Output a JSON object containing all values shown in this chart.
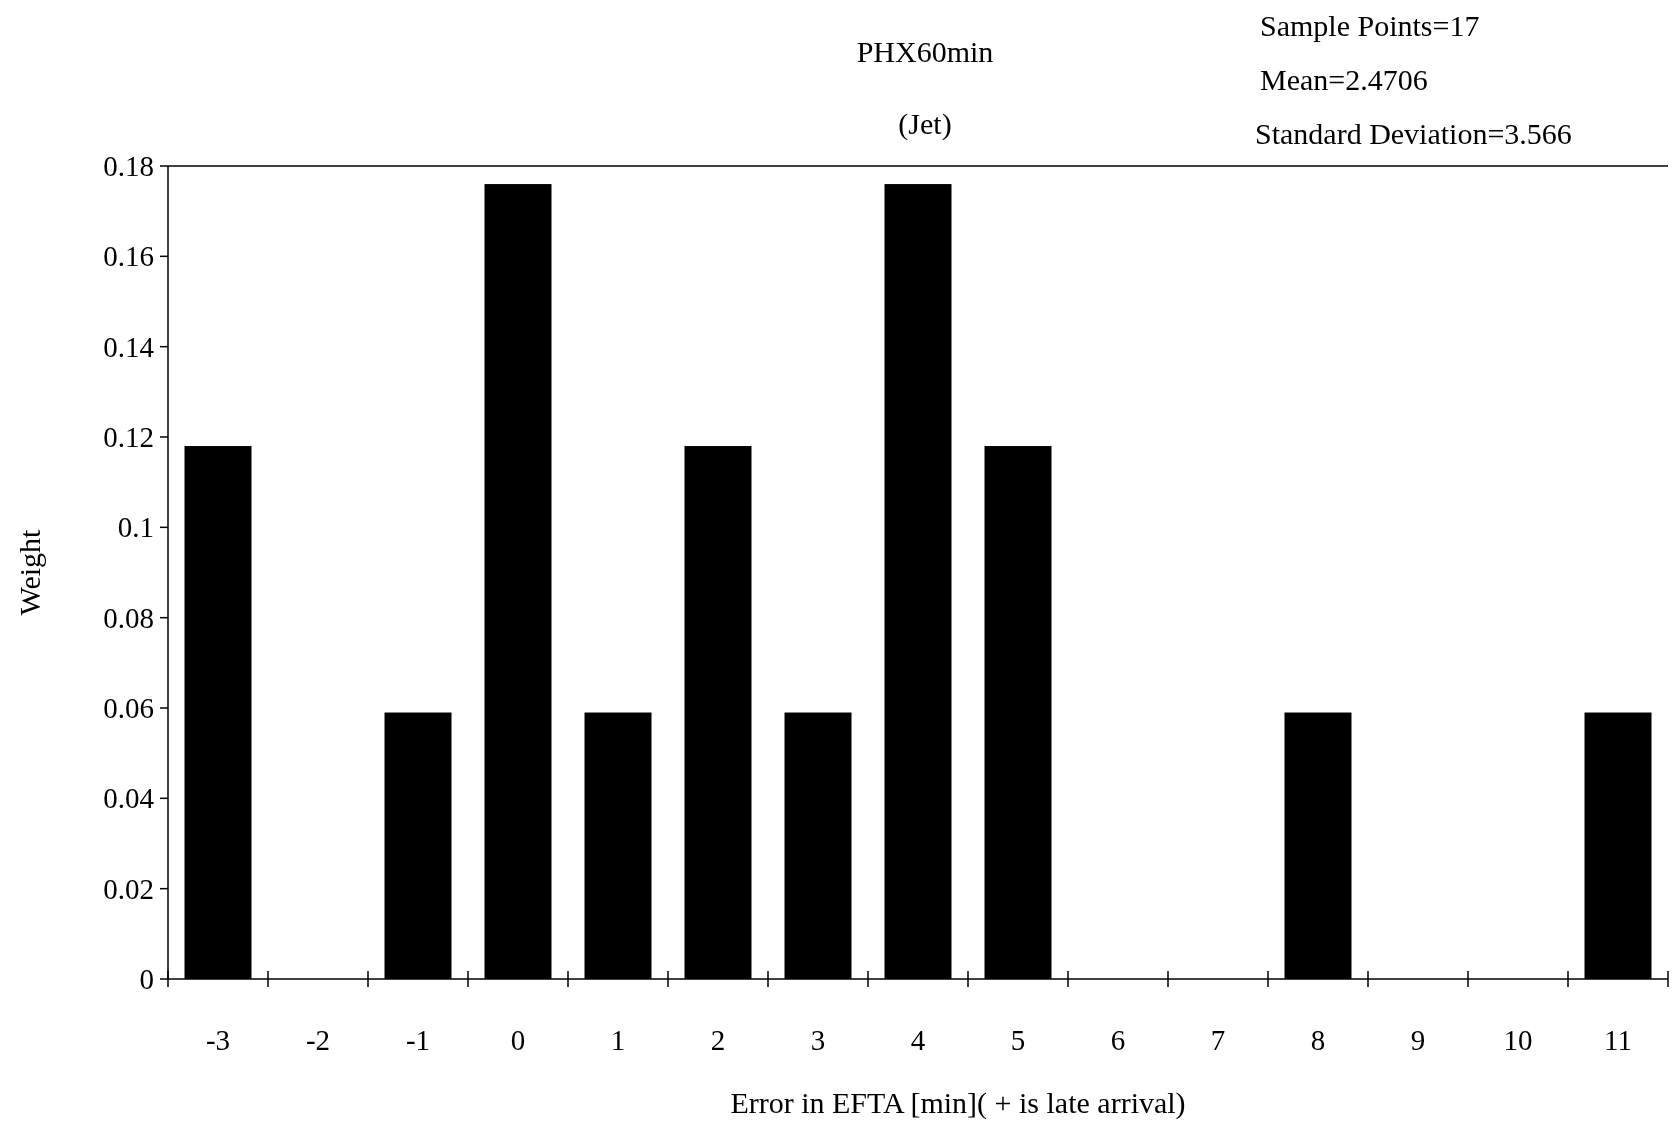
{
  "chart_data": {
    "type": "bar",
    "title": "PHX60min",
    "subtitle": "(Jet)",
    "xlabel": "Error in EFTA [min]( + is late arrival)",
    "ylabel": "Weight",
    "annotations": [
      "Sample Points=17",
      "Mean=2.4706",
      "Standard Deviation=3.566"
    ],
    "categories": [
      "-3",
      "-2",
      "-1",
      "0",
      "1",
      "2",
      "3",
      "4",
      "5",
      "6",
      "7",
      "8",
      "9",
      "10",
      "11"
    ],
    "values": [
      0.118,
      0,
      0.059,
      0.176,
      0.059,
      0.118,
      0.059,
      0.176,
      0.118,
      0,
      0,
      0.059,
      0,
      0,
      0.059
    ],
    "color": "#000000",
    "ylim": [
      0,
      0.18
    ],
    "yticks": [
      0,
      0.02,
      0.04,
      0.06,
      0.08,
      0.1,
      0.12,
      0.14,
      0.16,
      0.18
    ],
    "grid": false
  }
}
